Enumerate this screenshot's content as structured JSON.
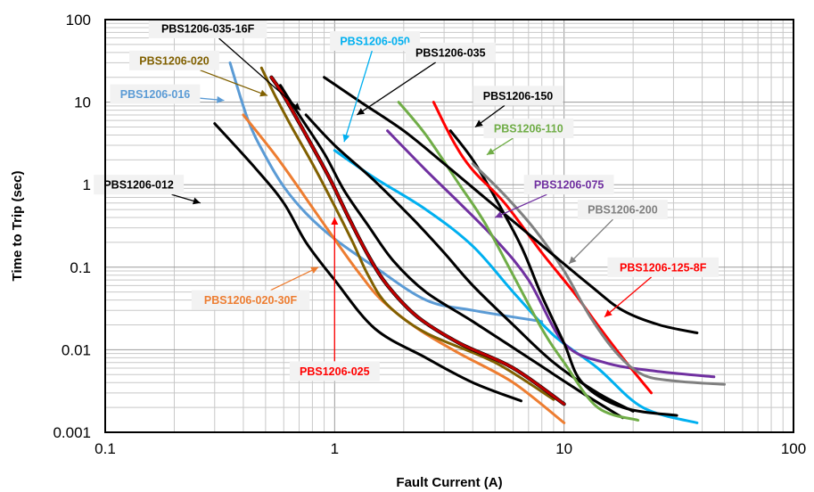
{
  "chart_data": {
    "type": "line",
    "title": "",
    "xlabel": "Fault Current (A)",
    "ylabel": "Time to Trip (sec)",
    "x_scale": "log",
    "y_scale": "log",
    "xlim": [
      0.1,
      100
    ],
    "ylim": [
      0.001,
      100
    ],
    "x_ticks": [
      "0.1",
      "1",
      "10",
      "100"
    ],
    "y_ticks": [
      "100",
      "10",
      "1",
      "0.1",
      "0.01",
      "0.001"
    ],
    "grid": true,
    "series": [
      {
        "name": "PBS1206-012",
        "color": "#000000",
        "points": [
          [
            0.3,
            5.5
          ],
          [
            0.45,
            1.6
          ],
          [
            0.6,
            0.6
          ],
          [
            0.75,
            0.2
          ],
          [
            1.0,
            0.07
          ],
          [
            1.5,
            0.018
          ],
          [
            2.5,
            0.008
          ],
          [
            4.0,
            0.004
          ],
          [
            6.5,
            0.0024
          ]
        ],
        "label": {
          "text": "PBS1206-012",
          "x": 0.14,
          "y": 1.0,
          "ax": 0.26,
          "ay": 0.6
        }
      },
      {
        "name": "PBS1206-016",
        "color": "#5B9BD5",
        "points": [
          [
            0.35,
            30
          ],
          [
            0.42,
            6
          ],
          [
            0.5,
            2.2
          ],
          [
            0.6,
            0.95
          ],
          [
            0.75,
            0.45
          ],
          [
            1.0,
            0.22
          ],
          [
            1.5,
            0.1
          ],
          [
            2.5,
            0.04
          ],
          [
            4.0,
            0.03
          ],
          [
            8.0,
            0.022
          ]
        ],
        "label": {
          "text": "PBS1206-016",
          "x": 0.165,
          "y": 12.5,
          "ax": 0.33,
          "ay": 10.5
        }
      },
      {
        "name": "PBS1206-020-30F",
        "color": "#ED7D31",
        "points": [
          [
            0.4,
            7
          ],
          [
            0.55,
            2.3
          ],
          [
            0.7,
            0.9
          ],
          [
            0.9,
            0.33
          ],
          [
            1.1,
            0.15
          ],
          [
            1.3,
            0.08
          ],
          [
            1.6,
            0.04
          ],
          [
            2.3,
            0.018
          ],
          [
            3.5,
            0.009
          ],
          [
            6.0,
            0.004
          ],
          [
            10.0,
            0.0013
          ]
        ],
        "label": {
          "text": "PBS1206-020-30F",
          "x": 0.43,
          "y": 0.04,
          "ax": 0.85,
          "ay": 0.1
        }
      },
      {
        "name": "PBS1206-020",
        "color": "#806000",
        "points": [
          [
            0.48,
            26
          ],
          [
            0.55,
            12
          ],
          [
            0.65,
            5
          ],
          [
            0.8,
            1.8
          ],
          [
            1.0,
            0.55
          ],
          [
            1.2,
            0.2
          ],
          [
            1.4,
            0.08
          ],
          [
            1.7,
            0.035
          ],
          [
            2.5,
            0.016
          ],
          [
            5.0,
            0.007
          ],
          [
            9.0,
            0.0025
          ]
        ],
        "label": {
          "text": "PBS1206-020",
          "x": 0.2,
          "y": 32,
          "ax": 0.51,
          "ay": 12
        }
      },
      {
        "name": "PBS1206-025",
        "color": "#C00000",
        "points": [
          [
            0.53,
            20
          ],
          [
            0.6,
            12
          ],
          [
            0.75,
            4
          ],
          [
            0.95,
            1.2
          ],
          [
            1.15,
            0.4
          ],
          [
            1.4,
            0.14
          ],
          [
            1.7,
            0.06
          ],
          [
            2.3,
            0.025
          ],
          [
            3.5,
            0.012
          ],
          [
            6.0,
            0.006
          ],
          [
            10.0,
            0.0022
          ]
        ],
        "label": {
          "text": "PBS1206-025",
          "x": 1.0,
          "y": 0.0055,
          "ax": 1.0,
          "ay": 0.4
        }
      },
      {
        "name": "PBS1206-035-16F",
        "color": "#000000",
        "points": [
          [
            0.58,
            16
          ],
          [
            0.7,
            7
          ],
          [
            0.9,
            2.4
          ],
          [
            1.1,
            0.85
          ],
          [
            1.4,
            0.32
          ],
          [
            1.8,
            0.12
          ],
          [
            2.5,
            0.05
          ],
          [
            4.0,
            0.022
          ],
          [
            7.0,
            0.008
          ],
          [
            12.0,
            0.003
          ],
          [
            18.0,
            0.0015
          ]
        ],
        "label": {
          "text": "PBS1206-035-16F",
          "x": 0.28,
          "y": 78,
          "ax": 0.71,
          "ay": 8
        }
      },
      {
        "name": "PBS1206-050",
        "color": "#00B0F0",
        "points": [
          [
            1.0,
            2.6
          ],
          [
            1.5,
            1.2
          ],
          [
            2.5,
            0.5
          ],
          [
            4.0,
            0.18
          ],
          [
            6.0,
            0.05
          ],
          [
            9.0,
            0.015
          ],
          [
            14.0,
            0.006
          ],
          [
            22.0,
            0.002
          ],
          [
            38.0,
            0.0013
          ]
        ],
        "label": {
          "text": "PBS1206-050",
          "x": 1.5,
          "y": 55,
          "ax": 1.1,
          "ay": 3.3
        }
      },
      {
        "name": "PBS1206-035",
        "color": "#000000",
        "points": [
          [
            0.75,
            7
          ],
          [
            1.0,
            3
          ],
          [
            1.5,
            1.1
          ],
          [
            2.2,
            0.38
          ],
          [
            3.0,
            0.15
          ],
          [
            4.0,
            0.06
          ],
          [
            6.0,
            0.02
          ],
          [
            9.0,
            0.007
          ],
          [
            14.0,
            0.003
          ],
          [
            20.0,
            0.0018
          ]
        ],
        "label": {
          "text": "PBS1206-035",
          "x": 3.2,
          "y": 40,
          "ax": 1.25,
          "ay": 7
        }
      },
      {
        "name": "PBS1206-075",
        "color": "#7030A0",
        "points": [
          [
            1.7,
            4.5
          ],
          [
            2.5,
            1.5
          ],
          [
            3.5,
            0.6
          ],
          [
            5.0,
            0.22
          ],
          [
            7.0,
            0.07
          ],
          [
            10.0,
            0.012
          ],
          [
            15.0,
            0.007
          ],
          [
            25.0,
            0.0055
          ],
          [
            45.0,
            0.0047
          ]
        ],
        "label": {
          "text": "PBS1206-075",
          "x": 10.5,
          "y": 1.0,
          "ax": 5.0,
          "ay": 0.4
        }
      },
      {
        "name": "PBS1206-110",
        "color": "#70AD47",
        "points": [
          [
            1.9,
            10
          ],
          [
            2.5,
            4
          ],
          [
            3.5,
            1.0
          ],
          [
            4.5,
            0.35
          ],
          [
            6.0,
            0.08
          ],
          [
            8.0,
            0.018
          ],
          [
            10.0,
            0.007
          ],
          [
            14.0,
            0.002
          ],
          [
            21.0,
            0.0014
          ]
        ],
        "label": {
          "text": "PBS1206-110",
          "x": 7.0,
          "y": 4.8,
          "ax": 4.6,
          "ay": 2.3
        }
      },
      {
        "name": "PBS1206-150",
        "color": "#000000",
        "points": [
          [
            3.2,
            4.5
          ],
          [
            4.0,
            2.0
          ],
          [
            5.0,
            0.7
          ],
          [
            6.5,
            0.18
          ],
          [
            8.0,
            0.045
          ],
          [
            10.0,
            0.012
          ],
          [
            12.0,
            0.004
          ],
          [
            18.0,
            0.002
          ],
          [
            31.0,
            0.0016
          ]
        ],
        "label": {
          "text": "PBS1206-150",
          "x": 6.3,
          "y": 12,
          "ax": 4.1,
          "ay": 5
        }
      },
      {
        "name": "PBS1206-125-8F",
        "color": "#FF0000",
        "points": [
          [
            2.7,
            10
          ],
          [
            3.3,
            3.3
          ],
          [
            4.0,
            1.5
          ],
          [
            5.5,
            0.6
          ],
          [
            8.0,
            0.15
          ],
          [
            11.0,
            0.05
          ],
          [
            14.0,
            0.02
          ],
          [
            18.0,
            0.008
          ],
          [
            24.0,
            0.003
          ]
        ],
        "label": {
          "text": "PBS1206-125-8F",
          "x": 27.0,
          "y": 0.1,
          "ax": 15.0,
          "ay": 0.025
        }
      },
      {
        "name": "PBS1206-200",
        "color": "#808080",
        "points": [
          [
            4.0,
            1.8
          ],
          [
            5.5,
            0.75
          ],
          [
            7.5,
            0.28
          ],
          [
            10.0,
            0.09
          ],
          [
            13.0,
            0.025
          ],
          [
            17.0,
            0.009
          ],
          [
            22.0,
            0.005
          ],
          [
            30.0,
            0.0042
          ],
          [
            50.0,
            0.0038
          ]
        ],
        "label": {
          "text": "PBS1206-200",
          "x": 18.0,
          "y": 0.5,
          "ax": 10.5,
          "ay": 0.11
        }
      },
      {
        "name": "",
        "color": "#000000",
        "points": [
          [
            0.9,
            20
          ],
          [
            1.3,
            10
          ],
          [
            2.0,
            4.5
          ],
          [
            3.0,
            1.8
          ],
          [
            4.5,
            0.7
          ],
          [
            6.5,
            0.3
          ],
          [
            9.0,
            0.14
          ],
          [
            13.0,
            0.06
          ],
          [
            18.0,
            0.03
          ],
          [
            26.0,
            0.02
          ],
          [
            38.0,
            0.016
          ]
        ]
      }
    ]
  }
}
